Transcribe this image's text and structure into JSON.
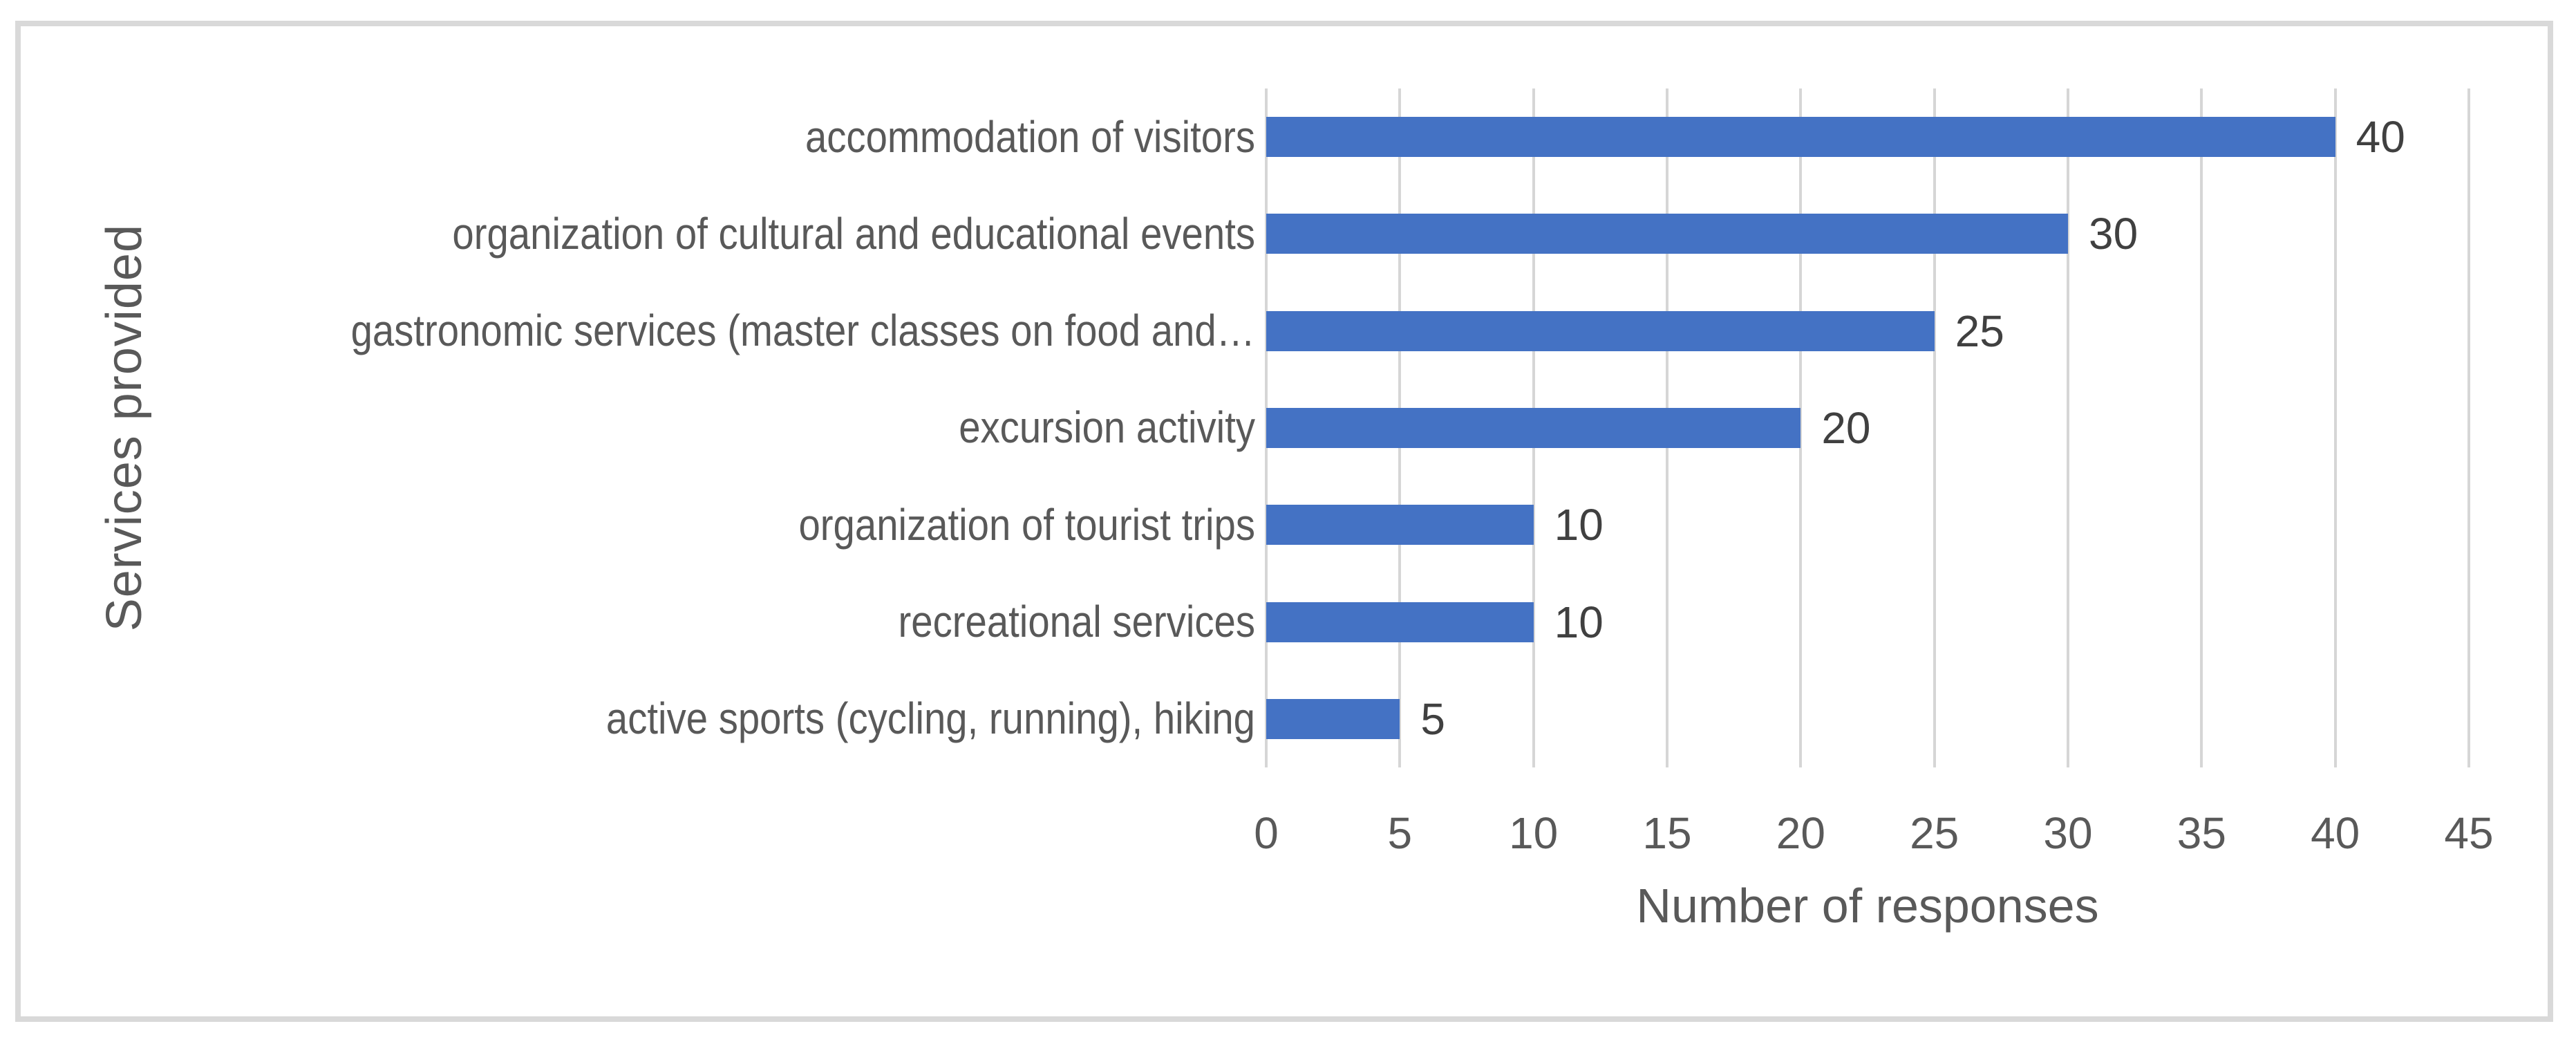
{
  "chart_data": {
    "type": "bar",
    "orientation": "horizontal",
    "title": "",
    "categories": [
      "accommodation of visitors",
      "organization of cultural and educational events",
      "gastronomic services (master classes on food and…",
      "excursion activity",
      "organization of tourist trips",
      "recreational services",
      "active sports (cycling, running), hiking"
    ],
    "values": [
      40,
      30,
      25,
      20,
      10,
      10,
      5
    ],
    "data_labels": [
      "40",
      "30",
      "25",
      "20",
      "10",
      "10",
      "5"
    ],
    "xlabel": "Number of responses",
    "ylabel": "Services provided",
    "xlim": [
      0,
      45
    ],
    "xticks": [
      0,
      5,
      10,
      15,
      20,
      25,
      30,
      35,
      40,
      45
    ],
    "grid": true,
    "legend": false,
    "bar_color": "#4472C4",
    "gridline_color": "#D6D6D6",
    "axis_label_color": "#595959",
    "data_label_color": "#404040",
    "frame_border_color": "#D9D9D9",
    "background_color": "#FFFFFF"
  }
}
